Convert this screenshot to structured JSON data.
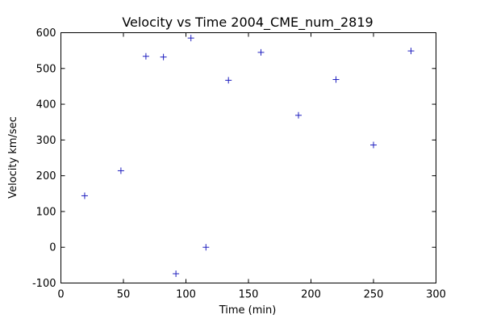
{
  "chart_data": {
    "type": "scatter",
    "title": "Velocity vs Time 2004_CME_num_2819",
    "xlabel": "Time (min)",
    "ylabel": "Velocity km/sec",
    "xlim": [
      0,
      300
    ],
    "ylim": [
      -100,
      600
    ],
    "xticks": [
      0,
      50,
      100,
      150,
      200,
      250,
      300
    ],
    "yticks": [
      -100,
      0,
      100,
      200,
      300,
      400,
      500,
      600
    ],
    "grid": false,
    "marker": "+",
    "marker_color": "#1f1fbf",
    "series": [
      {
        "x": [
          19,
          48,
          68,
          82,
          92,
          104,
          116,
          134,
          160,
          190,
          220,
          250,
          280
        ],
        "y": [
          144,
          214,
          534,
          532,
          -74,
          585,
          0,
          467,
          545,
          369,
          469,
          286,
          549
        ]
      }
    ]
  }
}
